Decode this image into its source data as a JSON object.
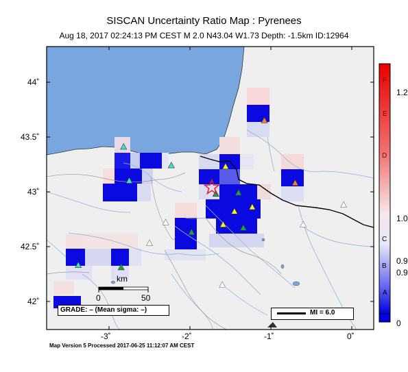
{
  "map": {
    "title": "SISCAN Uncertainty Ratio Map : Pyrenees",
    "subtitle": "Aug 18, 2017 02:24:13 PM CEST   M 2.0   N43.04 W1.73   Depth: -1.5km   ID:12964",
    "footer": "Map Version 5 Processed 2017-06-25 11:12:07 AM CEST",
    "grade_label": "GRADE: – (Mean sigma: –)",
    "mi_label": "MI = 6.0",
    "scalebar": {
      "unit": "km",
      "labels": [
        "0",
        "50"
      ]
    },
    "lat_ticks": [
      "44˚",
      "43.5˚",
      "43˚",
      "42.5˚",
      "42˚"
    ],
    "lon_ticks": [
      "-3˚",
      "-2˚",
      "-1˚",
      "0˚"
    ],
    "colors": {
      "sea": "#7aa6e0",
      "land": "#efefef",
      "border": "#000000",
      "rivers": "#8fb4d6",
      "strong_cell": "#0000e0",
      "epicenter": "#e0202a"
    }
  },
  "colorbar": {
    "letters": [
      "F",
      "E",
      "D",
      "C",
      "B",
      "A"
    ],
    "values": [
      "1.2",
      "1.0",
      "0.9",
      "0.9",
      "0"
    ]
  },
  "stations": [
    {
      "lon": -1.08,
      "lat": 43.65,
      "color": "orange"
    },
    {
      "lon": -2.82,
      "lat": 43.41,
      "color": "cyan"
    },
    {
      "lon": -2.23,
      "lat": 43.24,
      "color": "cyan"
    },
    {
      "lon": -2.75,
      "lat": 43.1,
      "color": "cyan"
    },
    {
      "lon": -1.56,
      "lat": 43.23,
      "color": "yellow"
    },
    {
      "lon": -0.7,
      "lat": 43.08,
      "color": "orange"
    },
    {
      "lon": -1.68,
      "lat": 42.98,
      "color": "green"
    },
    {
      "lon": -1.4,
      "lat": 42.99,
      "color": "green"
    },
    {
      "lon": -1.45,
      "lat": 42.82,
      "color": "yellow"
    },
    {
      "lon": -1.23,
      "lat": 42.86,
      "color": "yellow"
    },
    {
      "lon": -1.34,
      "lat": 42.67,
      "color": "green"
    },
    {
      "lon": -1.59,
      "lat": 42.7,
      "color": "yellow"
    },
    {
      "lon": -1.98,
      "lat": 42.63,
      "color": "green"
    },
    {
      "lon": -3.38,
      "lat": 42.33,
      "color": "cyan"
    },
    {
      "lon": -2.85,
      "lat": 42.31,
      "color": "green"
    },
    {
      "lon": -0.1,
      "lat": 42.88,
      "color": "white"
    },
    {
      "lon": -2.3,
      "lat": 42.72,
      "color": "white"
    },
    {
      "lon": -2.5,
      "lat": 42.53,
      "color": "white"
    },
    {
      "lon": -1.6,
      "lat": 42.15,
      "color": "white"
    },
    {
      "lon": -0.6,
      "lat": 42.7,
      "color": "white"
    }
  ],
  "epicenter": {
    "lon": -1.73,
    "lat": 43.04
  }
}
